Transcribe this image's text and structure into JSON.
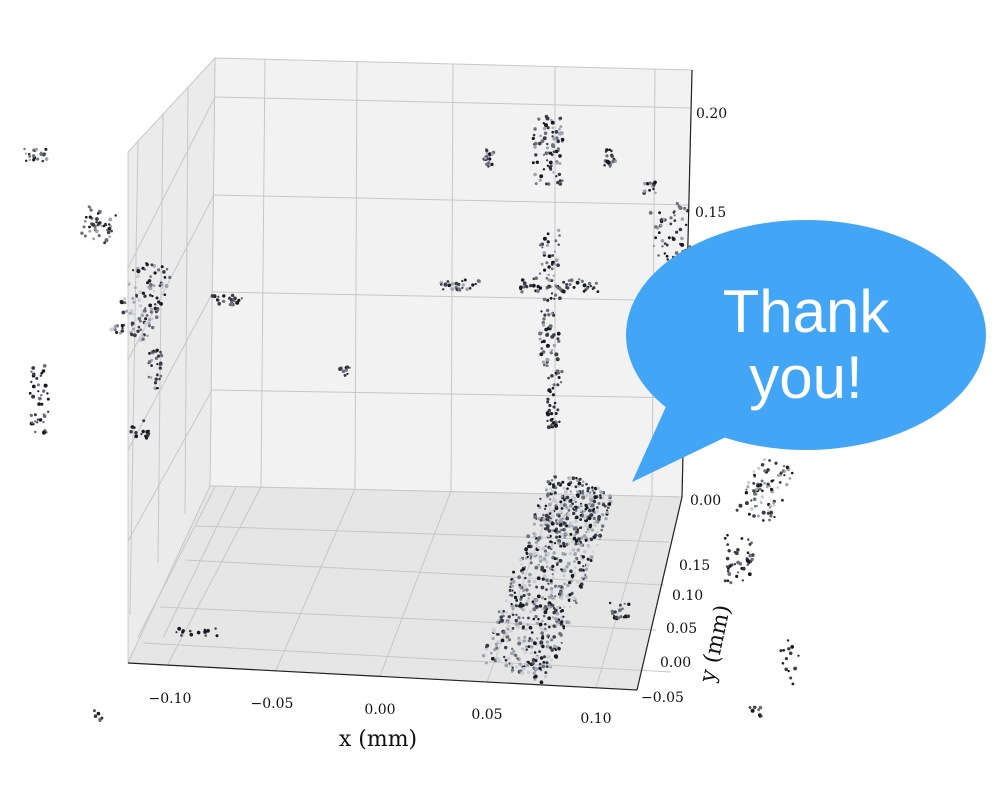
{
  "chart_data": {
    "type": "scatter",
    "projection": "3d",
    "xlabel": "x (mm)",
    "ylabel": "y (mm)",
    "zlabel": "",
    "xlim": [
      -0.12,
      0.12
    ],
    "ylim": [
      -0.05,
      0.15
    ],
    "zlim": [
      -0.05,
      0.22
    ],
    "grid": true,
    "pane_color": "#f2f2f2",
    "x_ticks": [
      "−0.10",
      "−0.05",
      "0.00",
      "0.05",
      "0.10"
    ],
    "y_ticks": [
      "−0.05",
      "0.00",
      "0.05",
      "0.10",
      "0.15"
    ],
    "z_ticks": [
      "0.00",
      "0.15",
      "0.20"
    ],
    "point_colors": [
      "#1a1a22",
      "#3b3b48",
      "#6b6f7a",
      "#9ea3ad",
      "#c9ccd2"
    ]
  },
  "annotation": {
    "bubble_line1": "Thank",
    "bubble_line2": "you!",
    "bubble_color": "#42a5f5"
  }
}
